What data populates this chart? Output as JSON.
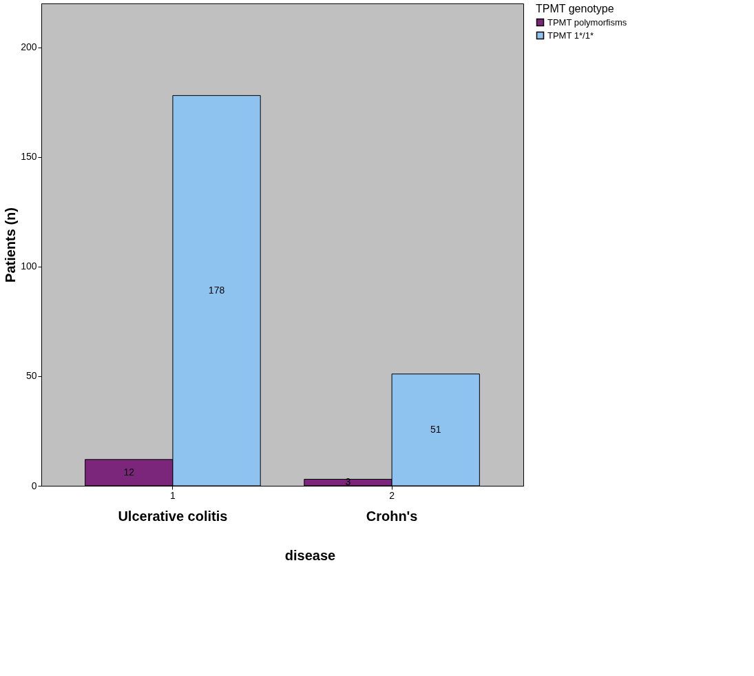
{
  "chart_data": {
    "type": "bar",
    "xlabel": "disease",
    "ylabel": "Patients (n)",
    "legend_title": "TPMT genotype",
    "categories": [
      "1",
      "2"
    ],
    "series": [
      {
        "name": "TPMT polymorfisms",
        "color": "#7b267b",
        "values": [
          12,
          3
        ]
      },
      {
        "name": "TPMT 1*/1*",
        "color": "#8fc3ef",
        "values": [
          178,
          51
        ]
      }
    ],
    "annotations": [
      "Ulcerative colitis",
      "Crohn's"
    ],
    "ylim": [
      0,
      220
    ],
    "yticks": [
      0,
      50,
      100,
      150,
      200
    ],
    "grid": false,
    "legend": "top right",
    "data_labels": true
  }
}
